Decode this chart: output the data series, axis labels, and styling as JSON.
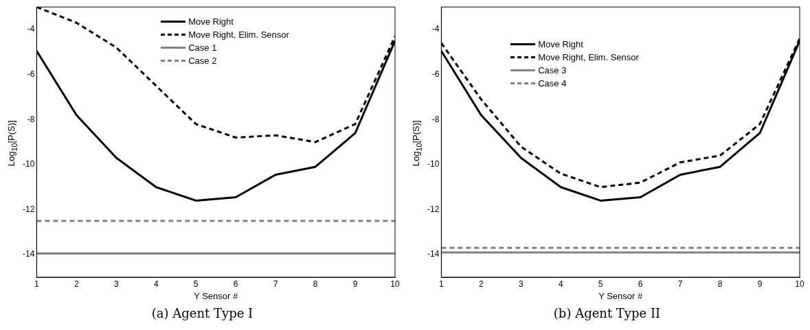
{
  "chart_data": [
    {
      "type": "line",
      "title": "(a) Agent Type I",
      "xlabel": "Y Sensor #",
      "ylabel": "Log$_{10}$[P(S)]",
      "x": [
        1,
        2,
        3,
        4,
        5,
        6,
        7,
        8,
        9,
        10
      ],
      "xlim": [
        1,
        10
      ],
      "xticks": [
        1,
        2,
        3,
        4,
        5,
        6,
        7,
        8,
        9,
        10
      ],
      "ylim": [
        -15,
        -3
      ],
      "yticks": [
        -14,
        -12,
        -10,
        -8,
        -6,
        -4
      ],
      "grid": false,
      "legend": "top",
      "marker": "none",
      "series": [
        {
          "name": "Move Right",
          "color": "#000000",
          "line_style": "solid",
          "values": [
            -4.95,
            -7.8,
            -9.7,
            -11.0,
            -11.6,
            -11.45,
            -10.45,
            -10.1,
            -8.6,
            -4.5
          ]
        },
        {
          "name": "Move Right, Elim. Sensor",
          "color": "#000000",
          "line_style": "dashed",
          "values": [
            -3.0,
            -3.7,
            -4.8,
            -6.5,
            -8.2,
            -8.8,
            -8.7,
            -9.0,
            -8.2,
            -4.3
          ]
        },
        {
          "name": "Case 1",
          "color": "#808080",
          "line_style": "solid",
          "values": [
            -13.95,
            -13.95,
            -13.95,
            -13.95,
            -13.95,
            -13.95,
            -13.95,
            -13.95,
            -13.95,
            -13.95
          ]
        },
        {
          "name": "Case 2",
          "color": "#808080",
          "line_style": "dashed",
          "values": [
            -12.5,
            -12.5,
            -12.5,
            -12.5,
            -12.5,
            -12.5,
            -12.5,
            -12.5,
            -12.5,
            -12.5
          ]
        }
      ]
    },
    {
      "type": "line",
      "title": "(b) Agent Type II",
      "xlabel": "Y Sensor #",
      "ylabel": "Log$_{10}$[P(S)]",
      "x": [
        1,
        2,
        3,
        4,
        5,
        6,
        7,
        8,
        9,
        10
      ],
      "xlim": [
        1,
        10
      ],
      "xticks": [
        1,
        2,
        3,
        4,
        5,
        6,
        7,
        8,
        9,
        10
      ],
      "ylim": [
        -15,
        -3
      ],
      "yticks": [
        -14,
        -12,
        -10,
        -8,
        -6,
        -4
      ],
      "grid": false,
      "legend": "top",
      "marker": "none",
      "series": [
        {
          "name": "Move Right",
          "color": "#000000",
          "line_style": "solid",
          "values": [
            -4.95,
            -7.8,
            -9.7,
            -11.0,
            -11.6,
            -11.45,
            -10.45,
            -10.1,
            -8.6,
            -4.5
          ]
        },
        {
          "name": "Move Right, Elim. Sensor",
          "color": "#000000",
          "line_style": "dashed",
          "values": [
            -4.6,
            -7.1,
            -9.2,
            -10.4,
            -11.0,
            -10.8,
            -9.9,
            -9.6,
            -8.2,
            -4.4
          ]
        },
        {
          "name": "Case 3",
          "color": "#808080",
          "line_style": "solid",
          "values": [
            -13.9,
            -13.9,
            -13.9,
            -13.9,
            -13.9,
            -13.9,
            -13.9,
            -13.9,
            -13.9,
            -13.9
          ]
        },
        {
          "name": "Case 4",
          "color": "#808080",
          "line_style": "dashed",
          "values": [
            -13.7,
            -13.7,
            -13.7,
            -13.7,
            -13.7,
            -13.7,
            -13.7,
            -13.7,
            -13.7,
            -13.7
          ]
        }
      ]
    }
  ]
}
